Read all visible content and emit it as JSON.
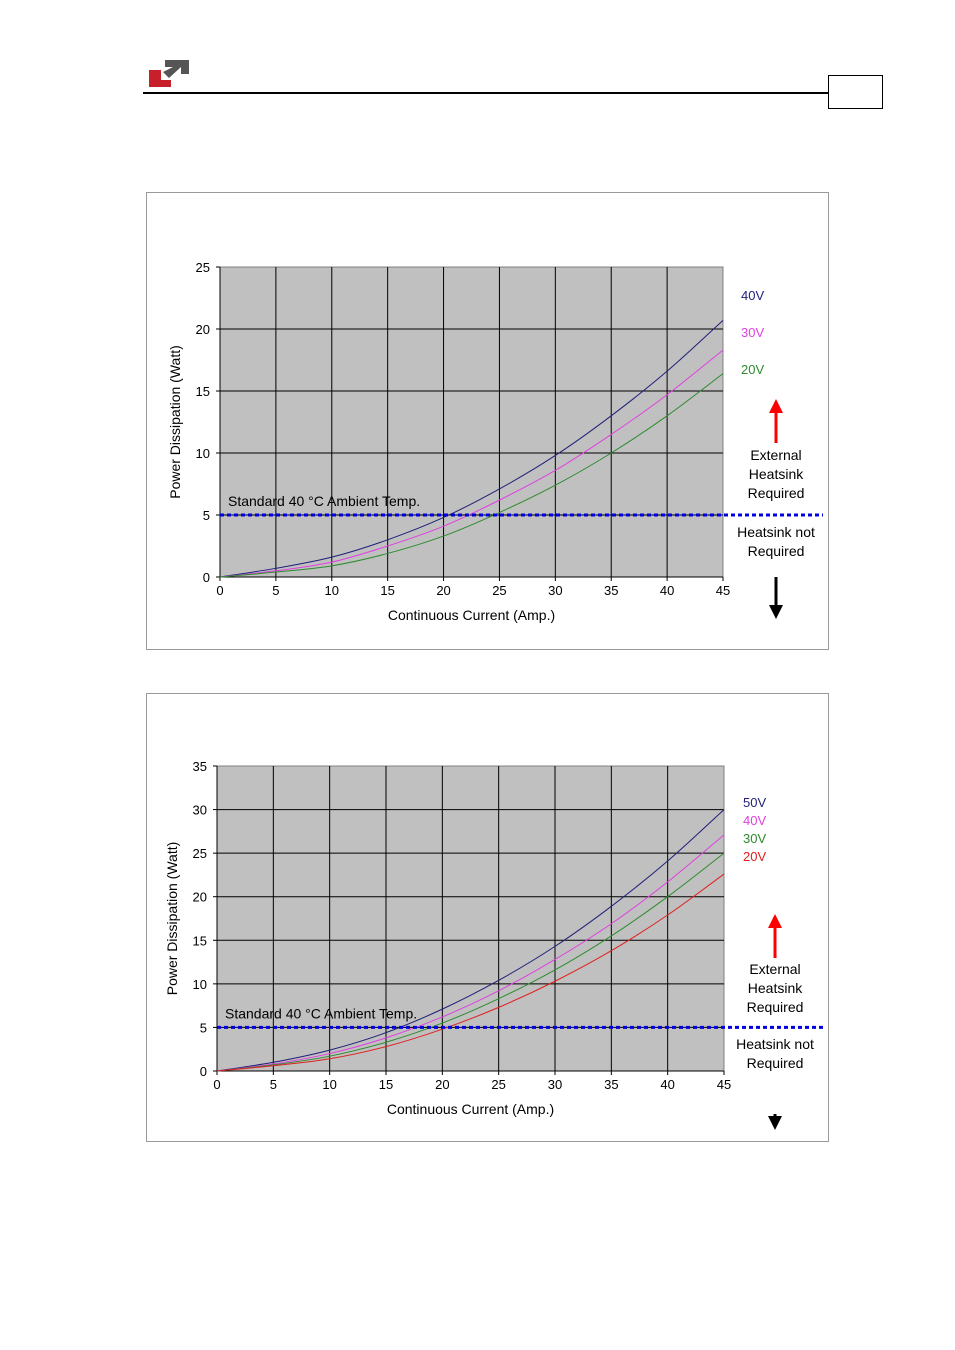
{
  "header": {
    "logo_icon": "company-logo-icon"
  },
  "chart_data": [
    {
      "type": "line",
      "xlabel": "Continuous Current (Amp.)",
      "ylabel": "Power Dissipation (Watt)",
      "xlim": [
        0,
        45
      ],
      "ylim": [
        0,
        25
      ],
      "x_ticks": [
        0,
        5,
        10,
        15,
        20,
        25,
        30,
        35,
        40,
        45
      ],
      "y_ticks": [
        0,
        5,
        10,
        15,
        20,
        25
      ],
      "grid": true,
      "plot_background": "#c0c0c0",
      "x": [
        0,
        5,
        10,
        15,
        20,
        25,
        30,
        35,
        40,
        45
      ],
      "series": [
        {
          "name": "40V",
          "color": "#1f1f7a",
          "values": [
            0,
            0.7,
            1.6,
            3.0,
            4.8,
            7.1,
            9.8,
            13.0,
            16.6,
            20.7
          ]
        },
        {
          "name": "30V",
          "color": "#e040e0",
          "values": [
            0,
            0.5,
            1.2,
            2.5,
            4.1,
            6.2,
            8.6,
            11.5,
            14.7,
            18.3
          ]
        },
        {
          "name": "20V",
          "color": "#2e8b2e",
          "values": [
            0,
            0.4,
            0.9,
            1.9,
            3.3,
            5.2,
            7.4,
            10.0,
            13.0,
            16.4
          ]
        }
      ],
      "threshold": {
        "value": 5,
        "label": "Standard 40 °C Ambient Temp.",
        "color": "#0000e0"
      },
      "above_label": [
        "External",
        "Heatsink",
        "Required"
      ],
      "below_label": [
        "Heatsink not",
        "Required"
      ],
      "up_arrow_color": "#ff0000",
      "down_arrow_color": "#000000"
    },
    {
      "type": "line",
      "xlabel": "Continuous Current (Amp.)",
      "ylabel": "Power Dissipation (Watt)",
      "xlim": [
        0,
        45
      ],
      "ylim": [
        0,
        35
      ],
      "x_ticks": [
        0,
        5,
        10,
        15,
        20,
        25,
        30,
        35,
        40,
        45
      ],
      "y_ticks": [
        0,
        5,
        10,
        15,
        20,
        25,
        30,
        35
      ],
      "grid": true,
      "plot_background": "#c0c0c0",
      "x": [
        0,
        5,
        10,
        15,
        20,
        25,
        30,
        35,
        40,
        45
      ],
      "series": [
        {
          "name": "50V",
          "color": "#1f1f7a",
          "values": [
            0,
            1.0,
            2.4,
            4.4,
            7.1,
            10.4,
            14.3,
            18.9,
            24.1,
            30.0
          ]
        },
        {
          "name": "40V",
          "color": "#e040e0",
          "values": [
            0,
            0.8,
            2.0,
            3.8,
            6.2,
            9.2,
            12.8,
            16.9,
            21.7,
            27.1
          ]
        },
        {
          "name": "30V",
          "color": "#2e8b2e",
          "values": [
            0,
            0.7,
            1.7,
            3.3,
            5.5,
            8.3,
            11.6,
            15.5,
            20.0,
            25.0
          ]
        },
        {
          "name": "20V",
          "color": "#e02020",
          "values": [
            0,
            0.6,
            1.4,
            2.8,
            4.8,
            7.3,
            10.3,
            13.8,
            17.9,
            22.6
          ]
        }
      ],
      "threshold": {
        "value": 5,
        "label": "Standard 40 °C Ambient Temp.",
        "color": "#0000e0"
      },
      "above_label": [
        "External",
        "Heatsink",
        "Required"
      ],
      "below_label": [
        "Heatsink not",
        "Required"
      ],
      "up_arrow_color": "#ff0000",
      "down_arrow_color": "#000000"
    }
  ]
}
